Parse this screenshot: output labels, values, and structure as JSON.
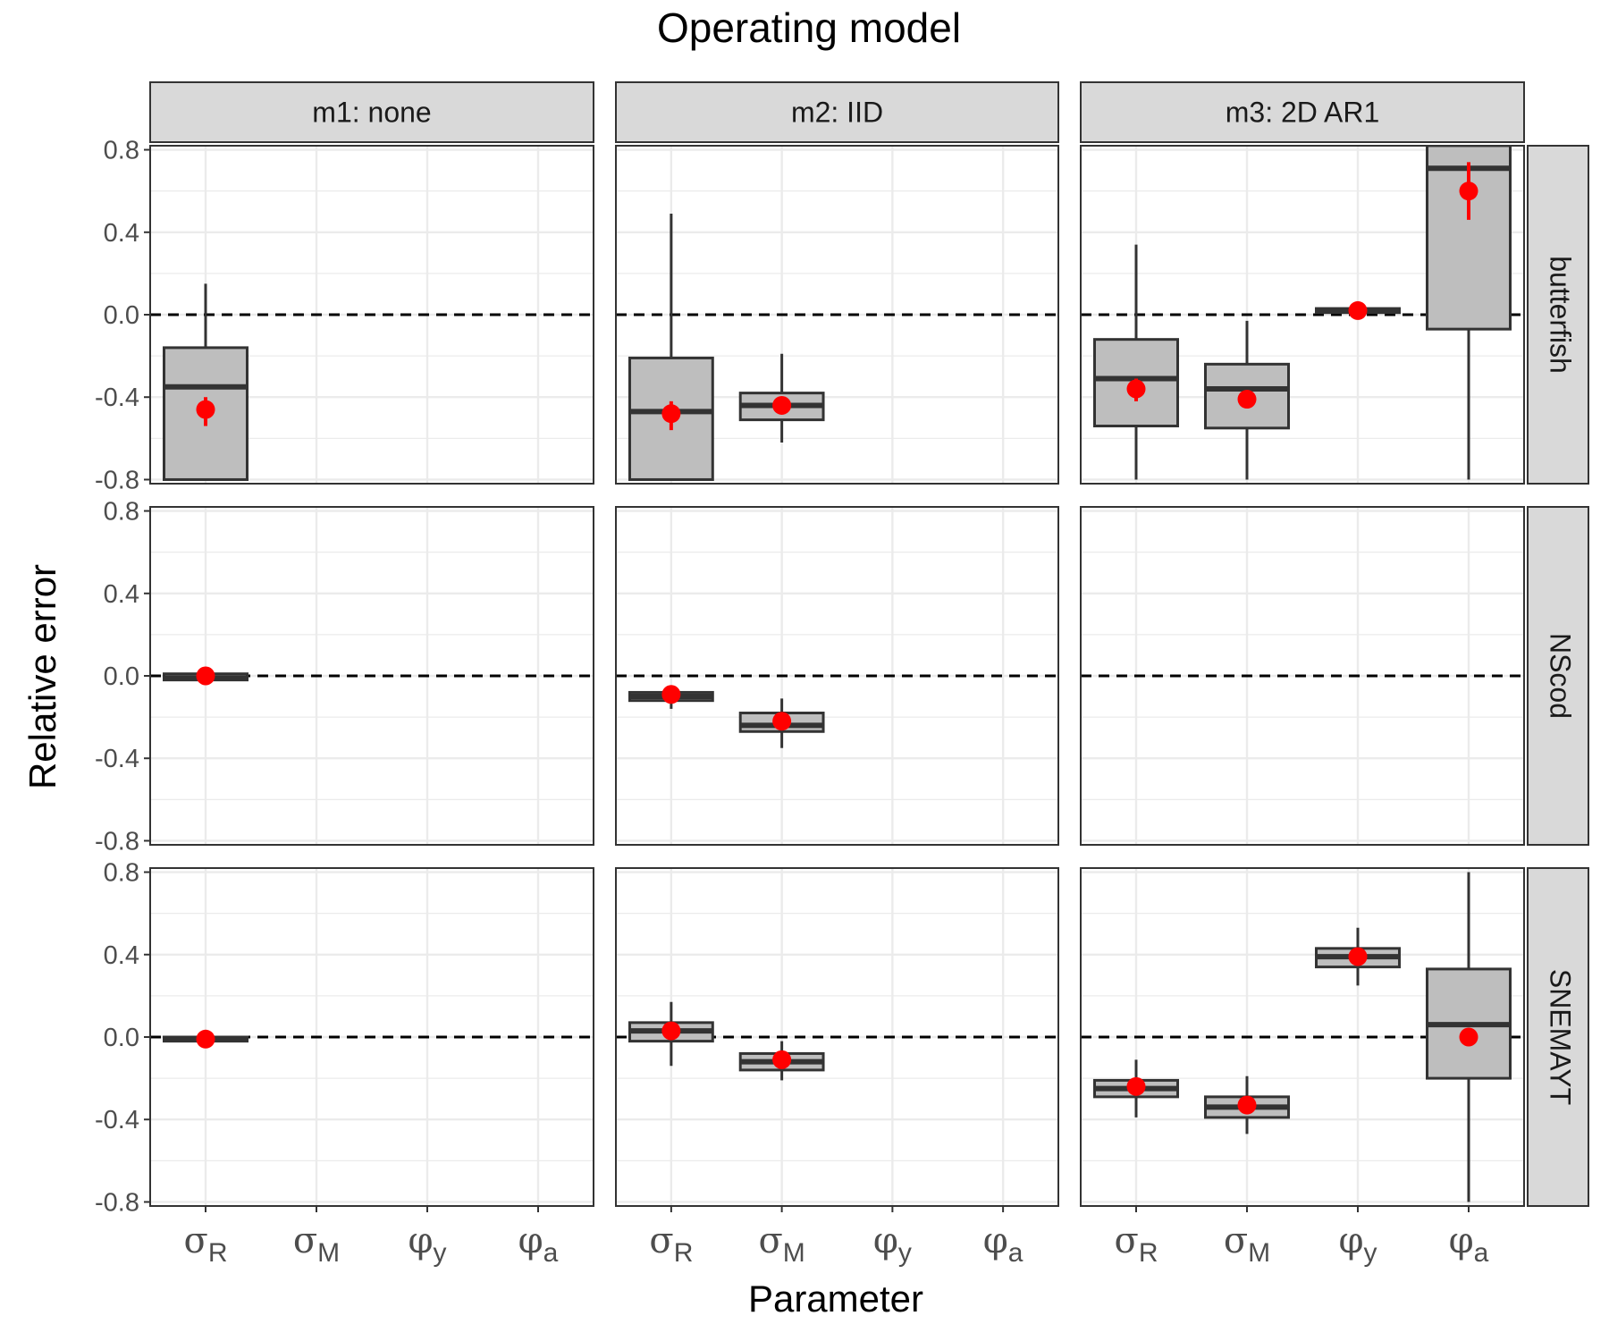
{
  "chart_data": {
    "type": "boxplot",
    "title": "Operating model",
    "xlabel": "Parameter",
    "ylabel": "Relative error",
    "ylim": [
      -0.8,
      0.8
    ],
    "y_ticks": [
      -0.8,
      -0.4,
      0.0,
      0.4,
      0.8
    ],
    "y_tick_labels": [
      "-0.8",
      "-0.4",
      "0.0",
      "0.4",
      "0.8"
    ],
    "reference_line": {
      "y": 0,
      "style": "dashed"
    },
    "parameters": [
      {
        "symbol": "σ",
        "sub": "R"
      },
      {
        "symbol": "σ",
        "sub": "M"
      },
      {
        "symbol": "φ",
        "sub": "y"
      },
      {
        "symbol": "φ",
        "sub": "a"
      }
    ],
    "columns": [
      "m1:  none",
      "m2:  IID",
      "m3:  2D  AR1"
    ],
    "rows": [
      "butterfish",
      "NScod",
      "SNEMAYT"
    ],
    "colors": {
      "box_fill": "#bebebe",
      "box_line": "#333333",
      "point": "#ff0000",
      "grid": "#ebebeb",
      "strip_fill": "#d9d9d9"
    },
    "panels": [
      {
        "row": 0,
        "col": 0,
        "boxes": [
          {
            "param": 0,
            "lower": -0.8,
            "q1": -0.8,
            "median": -0.35,
            "q3": -0.16,
            "upper": 0.15,
            "mean": -0.46,
            "ci": [
              -0.54,
              -0.4
            ]
          }
        ]
      },
      {
        "row": 0,
        "col": 1,
        "boxes": [
          {
            "param": 0,
            "lower": -0.8,
            "q1": -0.8,
            "median": -0.47,
            "q3": -0.21,
            "upper": 0.49,
            "mean": -0.48,
            "ci": [
              -0.56,
              -0.42
            ]
          },
          {
            "param": 1,
            "lower": -0.62,
            "q1": -0.51,
            "median": -0.44,
            "q3": -0.38,
            "upper": -0.19,
            "mean": -0.44,
            "ci": [
              -0.47,
              -0.41
            ]
          }
        ]
      },
      {
        "row": 0,
        "col": 2,
        "boxes": [
          {
            "param": 0,
            "lower": -0.8,
            "q1": -0.54,
            "median": -0.31,
            "q3": -0.12,
            "upper": 0.34,
            "mean": -0.36,
            "ci": [
              -0.42,
              -0.31
            ]
          },
          {
            "param": 1,
            "lower": -0.8,
            "q1": -0.55,
            "median": -0.36,
            "q3": -0.24,
            "upper": -0.03,
            "mean": -0.41,
            "ci": [
              -0.43,
              -0.39
            ]
          },
          {
            "param": 2,
            "lower": 0.01,
            "q1": 0.01,
            "median": 0.02,
            "q3": 0.03,
            "upper": 0.03,
            "mean": 0.02,
            "ci": [
              0.01,
              0.03
            ]
          },
          {
            "param": 3,
            "lower": -0.8,
            "q1": -0.07,
            "median": 0.71,
            "q3": 0.82,
            "upper": 0.82,
            "mean": 0.6,
            "ci": [
              0.46,
              0.74
            ]
          }
        ]
      },
      {
        "row": 1,
        "col": 0,
        "boxes": [
          {
            "param": 0,
            "lower": -0.02,
            "q1": -0.02,
            "median": -0.01,
            "q3": 0.01,
            "upper": 0.01,
            "mean": 0.0,
            "ci": [
              -0.01,
              0.01
            ]
          }
        ]
      },
      {
        "row": 1,
        "col": 1,
        "boxes": [
          {
            "param": 0,
            "lower": -0.16,
            "q1": -0.12,
            "median": -0.1,
            "q3": -0.08,
            "upper": -0.06,
            "mean": -0.09,
            "ci": [
              -0.11,
              -0.07
            ]
          },
          {
            "param": 1,
            "lower": -0.35,
            "q1": -0.27,
            "median": -0.24,
            "q3": -0.18,
            "upper": -0.11,
            "mean": -0.22,
            "ci": [
              -0.24,
              -0.2
            ]
          }
        ]
      },
      {
        "row": 1,
        "col": 2,
        "boxes": []
      },
      {
        "row": 2,
        "col": 0,
        "boxes": [
          {
            "param": 0,
            "lower": -0.02,
            "q1": -0.02,
            "median": -0.01,
            "q3": 0.0,
            "upper": 0.0,
            "mean": -0.01,
            "ci": [
              -0.02,
              0.0
            ]
          }
        ]
      },
      {
        "row": 2,
        "col": 1,
        "boxes": [
          {
            "param": 0,
            "lower": -0.14,
            "q1": -0.02,
            "median": 0.03,
            "q3": 0.07,
            "upper": 0.17,
            "mean": 0.03,
            "ci": [
              0.01,
              0.05
            ]
          },
          {
            "param": 1,
            "lower": -0.21,
            "q1": -0.16,
            "median": -0.12,
            "q3": -0.08,
            "upper": -0.02,
            "mean": -0.11,
            "ci": [
              -0.13,
              -0.09
            ]
          }
        ]
      },
      {
        "row": 2,
        "col": 2,
        "boxes": [
          {
            "param": 0,
            "lower": -0.39,
            "q1": -0.29,
            "median": -0.25,
            "q3": -0.21,
            "upper": -0.11,
            "mean": -0.24,
            "ci": [
              -0.26,
              -0.22
            ]
          },
          {
            "param": 1,
            "lower": -0.47,
            "q1": -0.39,
            "median": -0.34,
            "q3": -0.29,
            "upper": -0.19,
            "mean": -0.33,
            "ci": [
              -0.35,
              -0.31
            ]
          },
          {
            "param": 2,
            "lower": 0.25,
            "q1": 0.34,
            "median": 0.39,
            "q3": 0.43,
            "upper": 0.53,
            "mean": 0.39,
            "ci": [
              0.37,
              0.41
            ]
          },
          {
            "param": 3,
            "lower": -0.8,
            "q1": -0.2,
            "median": 0.06,
            "q3": 0.33,
            "upper": 0.8,
            "mean": 0.0,
            "ci": [
              -0.02,
              0.02
            ]
          }
        ]
      }
    ]
  }
}
